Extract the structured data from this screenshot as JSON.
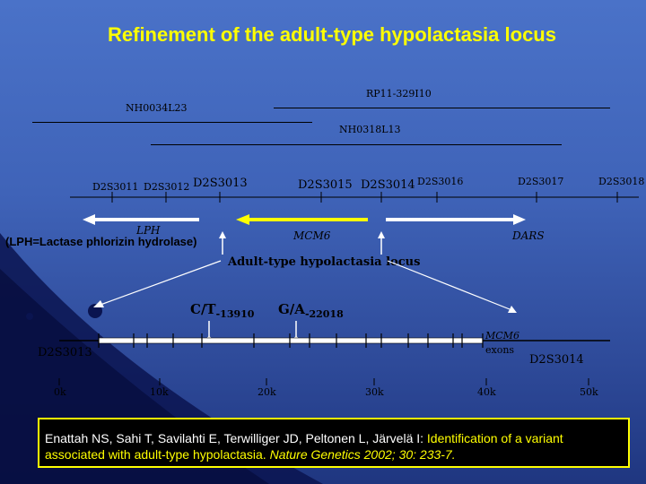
{
  "title": "Refinement of the adult-type hypolactasia locus",
  "clones": {
    "rp11": "RP11-329I10",
    "nh0034": "NH0034L23",
    "nh0318": "NH0318L13"
  },
  "markers": {
    "d2s3011": "D2S3011",
    "d2s3012": "D2S3012",
    "d2s3013": "D2S3013",
    "d2s3015": "D2S3015",
    "d2s3014": "D2S3014",
    "d2s3016": "D2S3016",
    "d2s3017": "D2S3017",
    "d2s3018": "D2S3018"
  },
  "genes": {
    "lph": "LPH",
    "lph_full": "(LPH=Lactase phlorizin hydrolase)",
    "mcm6": "MCM6",
    "dars": "DARS"
  },
  "locus_label": "Adult-type hypolactasia locus",
  "variants": {
    "ct_main": "C/T",
    "ct_sub": "-13910",
    "ga_main": "G/A",
    "ga_sub": "-22018"
  },
  "detail": {
    "left_marker": "D2S3013",
    "right_marker": "D2S3014",
    "exons_gene": "MCM6",
    "exons_word": "exons"
  },
  "scale": [
    "0k",
    "10k",
    "20k",
    "30k",
    "40k",
    "50k"
  ],
  "citation": {
    "authors": "Enattah NS, Sahi T, Savilahti E, Terwilliger JD, Peltonen L, Järvelä I: ",
    "title": "Identification of a variant associated with adult-type hypolactasia.",
    "journal": " Nature Genetics 2002; 30: 233-7."
  },
  "colors": {
    "background": "#3f63b8",
    "title": "#ffff00",
    "mcm6_arrow": "#ffff00",
    "citation_border": "#ffff00"
  }
}
